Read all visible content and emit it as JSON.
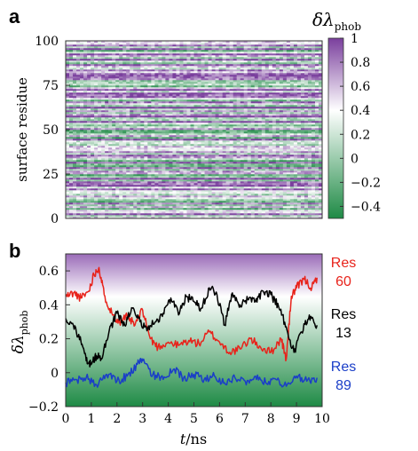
{
  "panels": {
    "a": {
      "label": "a",
      "chart_data": {
        "type": "heatmap",
        "ylabel": "surface residue",
        "yticks": [
          0,
          25,
          50,
          75,
          100
        ],
        "ylim": [
          0,
          100
        ],
        "xlim": [
          0,
          10
        ],
        "rows": 100,
        "colorbar": {
          "title_symbol": "δλ",
          "title_subscript": "phob",
          "ticks": [
            "1",
            "0.8",
            "0.6",
            "0.4",
            "0.2",
            "0",
            "−0.2",
            "−0.4"
          ],
          "tick_values": [
            1,
            0.8,
            0.6,
            0.4,
            0.2,
            0,
            -0.2,
            -0.4
          ],
          "range": [
            -0.5,
            1.0
          ],
          "colors": {
            "low": "#1e8a45",
            "mid": "#ffffff",
            "high": "#7a3f9d"
          }
        }
      }
    },
    "b": {
      "label": "b",
      "chart_data": {
        "type": "line",
        "xlabel_symbol": "t",
        "xlabel_unit": "/ns",
        "ylabel_symbol": "δλ",
        "ylabel_subscript": "phob",
        "xlim": [
          0,
          10
        ],
        "ylim": [
          -0.2,
          0.7
        ],
        "xticks": [
          0,
          1,
          2,
          3,
          4,
          5,
          6,
          7,
          8,
          9,
          10
        ],
        "yticks": [
          -0.2,
          0,
          0.2,
          0.4,
          0.6
        ],
        "ytick_labels": [
          "−0.2",
          "0",
          "0.2",
          "0.4",
          "0.6"
        ],
        "background_gradient": {
          "top": "#9a6bb8",
          "mid": "#ffffff",
          "bottom": "#1e8a45"
        },
        "series": [
          {
            "name": "Res 60",
            "legend_line1": "Res",
            "legend_line2": "60",
            "color": "#e8231b",
            "x": [
              0,
              0.3,
              0.6,
              0.9,
              1.1,
              1.3,
              1.5,
              1.8,
              2.1,
              2.4,
              2.7,
              3.0,
              3.3,
              3.6,
              4.0,
              4.4,
              4.8,
              5.2,
              5.6,
              6.0,
              6.4,
              6.8,
              7.2,
              7.6,
              8.0,
              8.4,
              8.6,
              8.8,
              9.0,
              9.3,
              9.6,
              9.8
            ],
            "y": [
              0.45,
              0.47,
              0.44,
              0.48,
              0.58,
              0.62,
              0.46,
              0.35,
              0.3,
              0.33,
              0.28,
              0.37,
              0.2,
              0.15,
              0.18,
              0.16,
              0.19,
              0.17,
              0.24,
              0.18,
              0.12,
              0.14,
              0.2,
              0.15,
              0.12,
              0.2,
              0.08,
              0.45,
              0.5,
              0.55,
              0.5,
              0.56
            ]
          },
          {
            "name": "Res 13",
            "legend_line1": "Res",
            "legend_line2": "13",
            "color": "#000000",
            "x": [
              0,
              0.3,
              0.6,
              0.8,
              1.0,
              1.2,
              1.4,
              1.7,
              2.0,
              2.3,
              2.6,
              2.9,
              3.2,
              3.5,
              3.8,
              4.1,
              4.4,
              4.7,
              5.0,
              5.3,
              5.6,
              5.9,
              6.2,
              6.5,
              6.8,
              7.1,
              7.4,
              7.7,
              8.0,
              8.3,
              8.6,
              8.9,
              9.2,
              9.5,
              9.8
            ],
            "y": [
              0.32,
              0.28,
              0.18,
              0.07,
              0.05,
              0.1,
              0.08,
              0.25,
              0.35,
              0.28,
              0.38,
              0.3,
              0.26,
              0.3,
              0.35,
              0.44,
              0.34,
              0.45,
              0.42,
              0.38,
              0.5,
              0.46,
              0.28,
              0.47,
              0.4,
              0.43,
              0.42,
              0.48,
              0.46,
              0.39,
              0.27,
              0.12,
              0.24,
              0.34,
              0.28
            ]
          },
          {
            "name": "Res 89",
            "legend_line1": "Res",
            "legend_line2": "89",
            "color": "#1a3ec8",
            "x": [
              0,
              0.4,
              0.8,
              1.2,
              1.6,
              2.0,
              2.4,
              2.8,
              3.0,
              3.4,
              3.8,
              4.2,
              4.6,
              5.0,
              5.4,
              5.8,
              6.2,
              6.6,
              7.0,
              7.4,
              7.8,
              8.2,
              8.6,
              9.0,
              9.4,
              9.8
            ],
            "y": [
              -0.06,
              -0.04,
              -0.03,
              -0.07,
              -0.01,
              -0.05,
              -0.02,
              0.05,
              0.07,
              -0.01,
              -0.04,
              0.02,
              -0.03,
              -0.01,
              -0.04,
              -0.02,
              -0.06,
              -0.03,
              -0.05,
              -0.02,
              -0.06,
              -0.04,
              -0.08,
              -0.02,
              -0.05,
              -0.03
            ]
          }
        ]
      }
    }
  }
}
